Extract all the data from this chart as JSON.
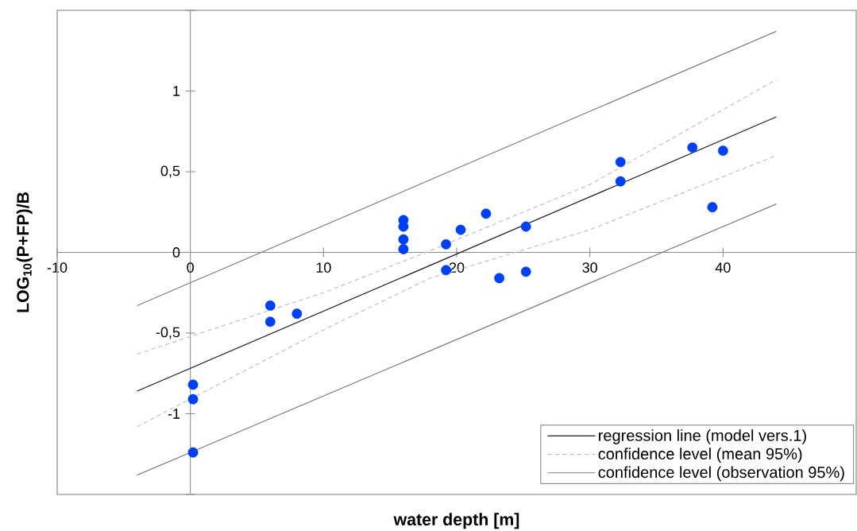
{
  "chart_data": {
    "type": "scatter",
    "xlabel": "water depth [m]",
    "ylabel": "LOG$_{10}$(P+FP)/B",
    "xlim": [
      -10,
      50
    ],
    "ylim": [
      -1.5,
      1.5
    ],
    "xticks": [
      -10,
      0,
      10,
      20,
      30,
      40
    ],
    "yticks": [
      {
        "value": -1.5,
        "label": null
      },
      -1,
      {
        "value": -0.5,
        "label": "-0,5"
      },
      0,
      {
        "value": 0.5,
        "label": "0,5"
      },
      1,
      {
        "value": 1.5,
        "label": null
      }
    ],
    "grid": false,
    "legend": "bottom right",
    "marker": "circle",
    "series": [
      {
        "name": "regression line (model vers.1)",
        "type": "line",
        "color": "#1a1a1a",
        "line_style": "solid",
        "marker": "none",
        "x": [
          -4,
          44
        ],
        "values": [
          -0.86,
          0.84
        ]
      },
      {
        "name": "confidence level (mean 95%)",
        "type": "line",
        "color": "#c0c0c0",
        "line_style": "dashed",
        "marker": "none",
        "x": [
          -4,
          10,
          18,
          30,
          44
        ],
        "values": [
          -0.63,
          -0.25,
          0.01,
          0.42,
          1.07
        ]
      },
      {
        "name": "confidence level (observation 95%)",
        "type": "line",
        "color": "#808080",
        "line_style": "solid",
        "marker": "none",
        "x": [
          -4,
          44
        ],
        "values": [
          -0.33,
          1.37
        ]
      },
      {
        "type": "line",
        "color": "#c0c0c0",
        "line_style": "dashed",
        "marker": "none",
        "x": [
          -4,
          10,
          18,
          30,
          44
        ],
        "values": [
          -1.08,
          -0.48,
          -0.16,
          0.14,
          0.6
        ]
      },
      {
        "type": "line",
        "color": "#808080",
        "line_style": "solid",
        "marker": "none",
        "x": [
          -4,
          44
        ],
        "values": [
          -1.38,
          0.3
        ]
      },
      {
        "color": "#0040f0",
        "x": [
          0.2,
          0.2,
          0.2,
          6,
          6,
          8,
          16,
          16,
          16,
          16,
          19.2,
          19.2,
          20.3,
          22.2,
          23.2,
          25.2,
          25.2,
          32.3,
          32.3,
          37.7,
          40,
          39.2
        ],
        "values": [
          -0.82,
          -0.91,
          -1.24,
          -0.33,
          -0.43,
          -0.38,
          0.2,
          0.16,
          0.08,
          0.02,
          0.05,
          -0.11,
          0.14,
          0.24,
          -0.16,
          0.16,
          -0.12,
          0.56,
          0.44,
          0.65,
          0.63,
          0.28
        ]
      }
    ]
  }
}
